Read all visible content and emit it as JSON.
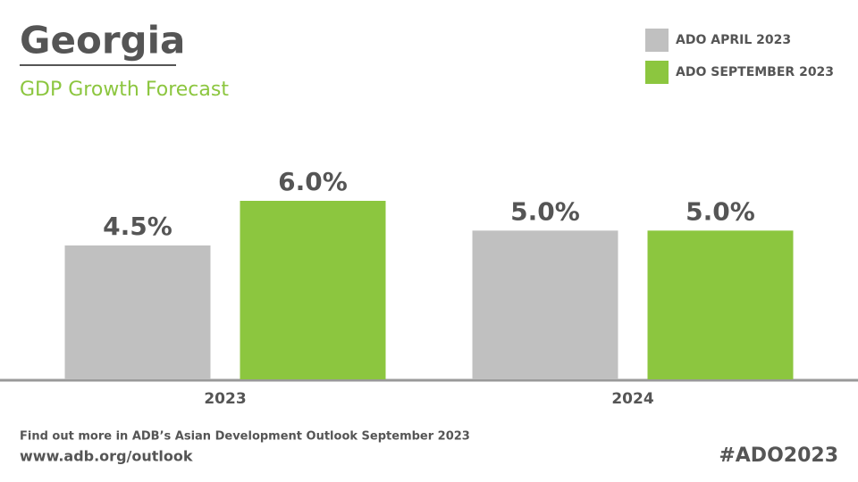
{
  "chart_data": {
    "type": "bar",
    "title": "Georgia",
    "subtitle": "GDP Growth Forecast",
    "categories": [
      "2023",
      "2024"
    ],
    "series": [
      {
        "name": "ADO APRIL 2023",
        "color": "#c0c0c0",
        "values": [
          4.5,
          5.0
        ],
        "value_labels": [
          "4.5%",
          "5.0%"
        ]
      },
      {
        "name": "ADO SEPTEMBER 2023",
        "color": "#8cc63f",
        "values": [
          6.0,
          5.0
        ],
        "value_labels": [
          "6.0%",
          "5.0%"
        ]
      }
    ],
    "legend": "top-right",
    "footer": {
      "note": "Find out more in ADB’s Asian Development Outlook September 2023",
      "url": "www.adb.org/outlook",
      "hashtag": "#ADO2023"
    }
  }
}
